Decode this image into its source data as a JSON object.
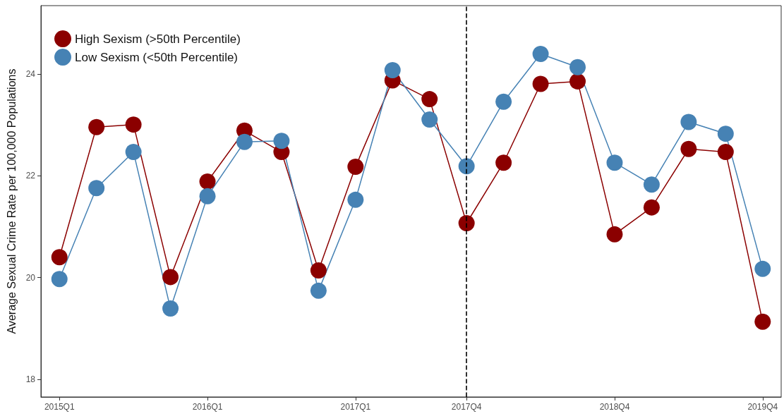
{
  "chart_data": {
    "type": "line",
    "ylabel": "Average Sexual Crime Rate per 100,000 Populations",
    "categories": [
      "2015Q1",
      null,
      null,
      null,
      "2016Q1",
      null,
      null,
      null,
      "2017Q1",
      null,
      null,
      "2017Q4",
      null,
      null,
      null,
      "2018Q4",
      null,
      null,
      null,
      "2019Q4"
    ],
    "series": [
      {
        "name": "High Sexism (>50th Percentile)",
        "color": "#8b0000",
        "values": [
          20.4,
          22.96,
          23.01,
          20.01,
          21.89,
          22.89,
          22.47,
          20.14,
          22.18,
          23.88,
          23.51,
          21.07,
          22.26,
          23.81,
          23.86,
          20.85,
          21.38,
          22.53,
          22.47,
          19.13
        ]
      },
      {
        "name": "Low Sexism (<50th Percentile)",
        "color": "#4682b4",
        "values": [
          19.97,
          21.76,
          22.47,
          19.39,
          21.6,
          22.67,
          22.69,
          19.74,
          21.53,
          24.08,
          23.11,
          22.19,
          23.46,
          24.4,
          24.14,
          22.26,
          21.83,
          23.06,
          22.83,
          20.17
        ]
      }
    ],
    "ylim": [
      17.65,
      25.35
    ],
    "yticks": [
      18,
      20,
      22,
      24
    ],
    "ref_lines": [
      {
        "axis": "x",
        "value": "2017Q4",
        "color": "#000000",
        "line_style": "dashed"
      }
    ],
    "grid": false,
    "legend": "top left",
    "marker": "circle",
    "line_style": "solid"
  }
}
